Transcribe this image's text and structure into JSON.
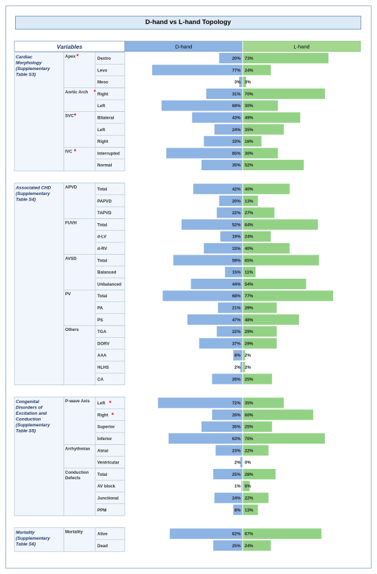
{
  "title": "D-hand vs L-hand Topology",
  "header": {
    "variables": "Variables",
    "d_hand": "D-hand",
    "l_hand": "L-hand"
  },
  "colors": {
    "d_bar": "#8eb4e3",
    "l_bar": "#93d285",
    "d_header": "#8eb4e3",
    "l_header": "#a3d88e",
    "table_bg": "#f0f6fc",
    "asterisk": "#e02020"
  },
  "chart_data": {
    "type": "bar",
    "title": "D-hand vs L-hand Topology",
    "xlabel": "",
    "ylabel": "",
    "unit": "%",
    "series": [
      {
        "name": "D-hand",
        "values": [
          20,
          77,
          3,
          31,
          69,
          43,
          24,
          33,
          65,
          35,
          42,
          20,
          22,
          52,
          19,
          33,
          59,
          15,
          44,
          68,
          21,
          47,
          22,
          37,
          8,
          2,
          26,
          72,
          26,
          35,
          63,
          23,
          2,
          25,
          1,
          24,
          8,
          62,
          25
        ]
      },
      {
        "name": "L-hand",
        "values": [
          73,
          24,
          3,
          70,
          30,
          49,
          35,
          16,
          30,
          52,
          40,
          13,
          27,
          64,
          24,
          40,
          65,
          11,
          54,
          77,
          29,
          48,
          29,
          29,
          2,
          2,
          25,
          35,
          60,
          25,
          70,
          22,
          0,
          28,
          6,
          22,
          13,
          67,
          24
        ]
      }
    ],
    "groups": [
      {
        "name": "Cardiac Morphology (Supplementary Table S3)",
        "subgroups": [
          {
            "name": "Apex",
            "star": true,
            "rows": [
              {
                "label": "Dextro",
                "d": 20,
                "l": 73
              },
              {
                "label": "Levo",
                "d": 77,
                "l": 24
              },
              {
                "label": "Meso",
                "d": 3,
                "l": 3
              }
            ]
          },
          {
            "name": "Aortic Arch",
            "star": true,
            "rows": [
              {
                "label": "Right",
                "d": 31,
                "l": 70
              },
              {
                "label": "Left",
                "d": 69,
                "l": 30
              }
            ]
          },
          {
            "name": "SVC",
            "star": true,
            "rows": [
              {
                "label": "Bilateral",
                "d": 43,
                "l": 49
              },
              {
                "label": "Left",
                "d": 24,
                "l": 35
              },
              {
                "label": "Right",
                "d": 33,
                "l": 16
              }
            ]
          },
          {
            "name": "IVC",
            "star": true,
            "rows": [
              {
                "label": "Interrupted",
                "d": 65,
                "l": 30
              },
              {
                "label": "Normal",
                "d": 35,
                "l": 52
              }
            ]
          }
        ]
      },
      {
        "name": "Associated CHD (Supplementary Table S4)",
        "subgroups": [
          {
            "name": "APVD",
            "star": false,
            "rows": [
              {
                "label": "Total",
                "d": 42,
                "l": 40
              },
              {
                "label": "PAPVD",
                "d": 20,
                "l": 13
              },
              {
                "label": "TAPVD",
                "d": 22,
                "l": 27
              }
            ]
          },
          {
            "name": "FUVH",
            "star": false,
            "rows": [
              {
                "label": "Total",
                "d": 52,
                "l": 64
              },
              {
                "label": "d-LV",
                "d": 19,
                "l": 24
              },
              {
                "label": "d-RV",
                "d": 33,
                "l": 40
              }
            ]
          },
          {
            "name": "AVSD",
            "star": false,
            "rows": [
              {
                "label": "Total",
                "d": 59,
                "l": 65
              },
              {
                "label": "Balanced",
                "d": 15,
                "l": 11
              },
              {
                "label": "Unbalanced",
                "d": 44,
                "l": 54
              }
            ]
          },
          {
            "name": "PV",
            "star": false,
            "rows": [
              {
                "label": "Total",
                "d": 68,
                "l": 77
              },
              {
                "label": "PA",
                "d": 21,
                "l": 29
              },
              {
                "label": "PS",
                "d": 47,
                "l": 48
              }
            ]
          },
          {
            "name": "Others",
            "star": false,
            "rows": [
              {
                "label": "TGA",
                "d": 22,
                "l": 29
              },
              {
                "label": "DORV",
                "d": 37,
                "l": 29
              },
              {
                "label": "AAA",
                "d": 8,
                "l": 2
              },
              {
                "label": "HLHS",
                "d": 2,
                "l": 2
              },
              {
                "label": "CA",
                "d": 26,
                "l": 25
              }
            ]
          }
        ]
      },
      {
        "name": "Congenital Disorders of Excitation and Conduction (Supplementary Table S5)",
        "subgroups": [
          {
            "name": "P-wave Axis",
            "star": false,
            "rows": [
              {
                "label": "Left",
                "star": true,
                "d": 72,
                "l": 35
              },
              {
                "label": "Right",
                "star": true,
                "d": 26,
                "l": 60
              },
              {
                "label": "Superior",
                "d": 35,
                "l": 25
              },
              {
                "label": "Inferior",
                "d": 63,
                "l": 70
              }
            ]
          },
          {
            "name": "Arrhythmias",
            "star": false,
            "rows": [
              {
                "label": "Atrial",
                "d": 23,
                "l": 22
              },
              {
                "label": "Ventricular",
                "d": 2,
                "l": 0
              }
            ]
          },
          {
            "name": "Conduction Defects",
            "star": false,
            "rows": [
              {
                "label": "Total",
                "d": 25,
                "l": 28
              },
              {
                "label": "AV block",
                "d": 1,
                "l": 6
              },
              {
                "label": "Junctional",
                "d": 24,
                "l": 22
              },
              {
                "label": "PPM",
                "d": 8,
                "l": 13
              }
            ]
          }
        ]
      },
      {
        "name": "Mortality (Supplementary Table S6)",
        "subgroups": [
          {
            "name": "Mortality",
            "star": false,
            "rows": [
              {
                "label": "Alive",
                "d": 62,
                "l": 67
              },
              {
                "label": "Dead",
                "d": 25,
                "l": 24
              }
            ]
          }
        ]
      }
    ]
  }
}
